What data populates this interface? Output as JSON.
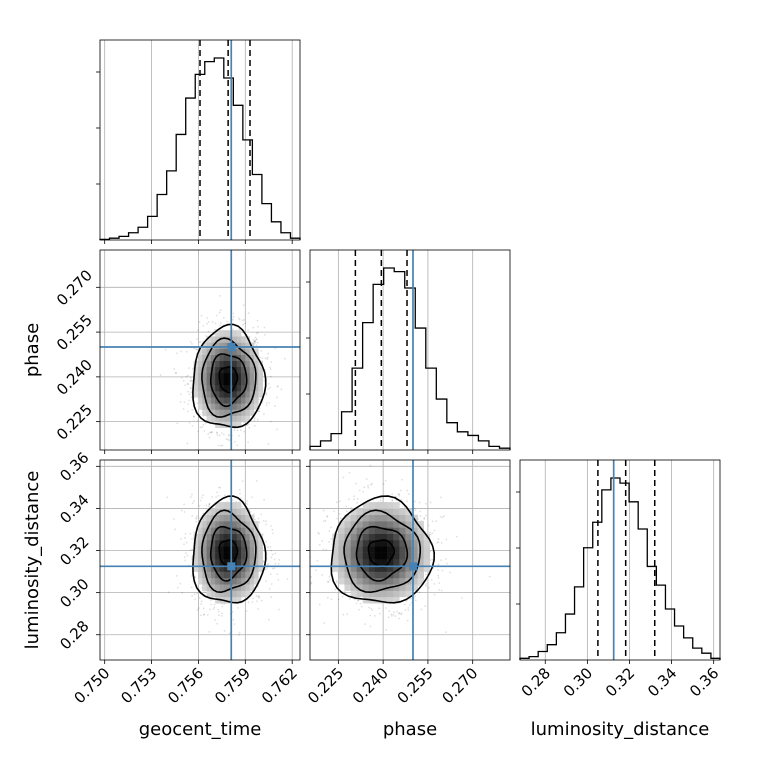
{
  "chart_data": {
    "type": "corner",
    "parameters": [
      {
        "key": "geocent_time",
        "label": "geocent_time",
        "range": [
          0.7497,
          0.7625
        ],
        "ticks": [
          0.75,
          0.753,
          0.756,
          0.759,
          0.762
        ],
        "tick_labels": [
          "0.750",
          "0.753",
          "0.756",
          "0.759",
          "0.762"
        ],
        "truth": 0.7581,
        "quantiles": [
          0.7561,
          0.7579,
          0.7593
        ],
        "mean": 0.7579,
        "sd": 0.00115
      },
      {
        "key": "phase",
        "label": "phase",
        "range": [
          0.2155,
          0.2825
        ],
        "ticks": [
          0.225,
          0.24,
          0.255,
          0.27
        ],
        "tick_labels": [
          "0.225",
          "0.240",
          "0.255",
          "0.270"
        ],
        "truth": 0.25,
        "quantiles": [
          0.2307,
          0.2394,
          0.248
        ],
        "mean": 0.2393,
        "sd": 0.0085
      },
      {
        "key": "luminosity_distance",
        "label": "luminosity_distance",
        "range": [
          0.268,
          0.363
        ],
        "ticks": [
          0.28,
          0.3,
          0.32,
          0.34,
          0.36
        ],
        "tick_labels": [
          "0.28",
          "0.30",
          "0.32",
          "0.34",
          "0.36"
        ],
        "truth": 0.3125,
        "quantiles": [
          0.305,
          0.3182,
          0.332
        ],
        "mean": 0.319,
        "sd": 0.0125
      }
    ],
    "truth_color": "#4682b4",
    "grid": true,
    "histograms": [
      {
        "parameter": "geocent_time",
        "counts": [
          0.3,
          1,
          2,
          4,
          7,
          13,
          25,
          38,
          58,
          78,
          91,
          98,
          100,
          89,
          74,
          55,
          36,
          20,
          10,
          4,
          1
        ]
      },
      {
        "parameter": "phase",
        "counts": [
          2,
          5,
          9,
          21,
          45,
          70,
          91,
          100,
          98,
          89,
          67,
          45,
          28,
          15,
          10,
          8,
          5,
          2,
          1
        ]
      },
      {
        "parameter": "luminosity_distance",
        "counts": [
          1,
          2,
          5,
          9,
          16,
          27,
          43,
          66,
          81,
          100,
          107,
          104,
          93,
          77,
          55,
          44,
          30,
          20,
          13,
          7,
          4,
          1
        ]
      }
    ],
    "contour_levels_sigma": [
      0.5,
      1.0,
      1.5,
      2.0
    ]
  }
}
